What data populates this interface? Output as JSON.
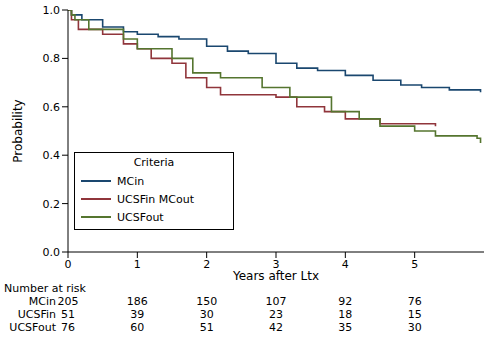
{
  "chart_data": {
    "type": "line",
    "x_label": "Years after Ltx",
    "y_label": "Probability",
    "xlim": [
      0,
      6
    ],
    "xticks": [
      0,
      1,
      2,
      3,
      4,
      5
    ],
    "ylim": [
      0,
      1
    ],
    "yticks": [
      {
        "value": 0,
        "label": "0.0"
      },
      {
        "value": 0.2,
        "label": "0.2"
      },
      {
        "value": 0.4,
        "label": "0.4"
      },
      {
        "value": 0.6,
        "label": "0.6"
      },
      {
        "value": 0.8,
        "label": "0.8"
      },
      {
        "value": 1,
        "label": "1.0"
      }
    ],
    "grid": false,
    "legend": "lower left",
    "legend_title": "Criteria",
    "line_style": "step",
    "series": [
      {
        "name": "MCin",
        "color": "#1a476f",
        "x": [
          0,
          0.05,
          0.2,
          0.5,
          0.8,
          1.0,
          1.3,
          1.6,
          2.0,
          2.3,
          2.6,
          3.0,
          3.3,
          3.6,
          4.0,
          4.4,
          4.8,
          5.1,
          5.5,
          5.95
        ],
        "values": [
          1.0,
          0.98,
          0.96,
          0.93,
          0.91,
          0.9,
          0.89,
          0.88,
          0.85,
          0.83,
          0.82,
          0.78,
          0.76,
          0.75,
          0.73,
          0.71,
          0.69,
          0.68,
          0.67,
          0.66
        ]
      },
      {
        "name": "UCSFin MCout",
        "color": "#90353b",
        "x": [
          0,
          0.05,
          0.15,
          0.5,
          0.8,
          1.0,
          1.2,
          1.5,
          1.7,
          2.0,
          2.2,
          3.0,
          3.3,
          3.7,
          4.0,
          4.5,
          5.3
        ],
        "values": [
          1.0,
          0.96,
          0.92,
          0.9,
          0.86,
          0.84,
          0.8,
          0.78,
          0.72,
          0.68,
          0.65,
          0.64,
          0.6,
          0.58,
          0.55,
          0.53,
          0.52
        ]
      },
      {
        "name": "UCSFout",
        "color": "#55752f",
        "x": [
          0,
          0.05,
          0.1,
          0.3,
          0.8,
          1.0,
          1.5,
          1.8,
          2.2,
          2.8,
          3.2,
          3.8,
          4.2,
          4.5,
          5.0,
          5.3,
          5.9,
          5.95
        ],
        "values": [
          1.0,
          0.98,
          0.96,
          0.92,
          0.88,
          0.84,
          0.8,
          0.74,
          0.72,
          0.68,
          0.64,
          0.58,
          0.55,
          0.52,
          0.5,
          0.48,
          0.47,
          0.45
        ]
      }
    ],
    "risk_table": {
      "title": "Number at risk",
      "x": [
        0,
        1,
        2,
        3,
        4,
        5
      ],
      "rows": [
        {
          "name": "MCin",
          "values": [
            205,
            186,
            150,
            107,
            92,
            76
          ]
        },
        {
          "name": "UCSFin",
          "values": [
            51,
            39,
            30,
            23,
            18,
            15
          ]
        },
        {
          "name": "UCSFout",
          "values": [
            76,
            60,
            51,
            42,
            35,
            30
          ]
        }
      ]
    }
  }
}
